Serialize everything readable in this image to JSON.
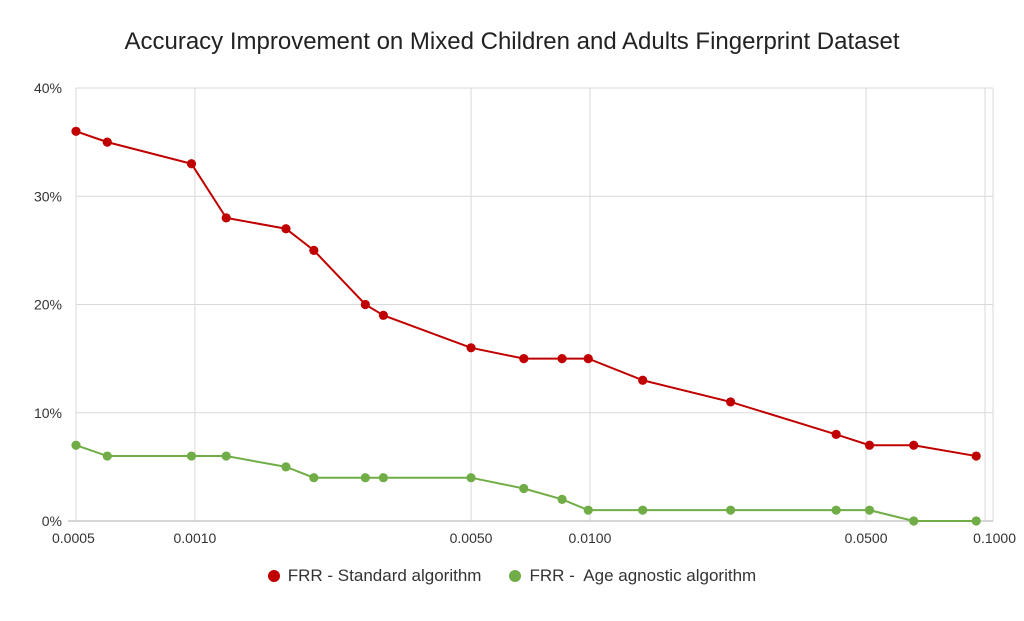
{
  "chart_data": {
    "type": "line",
    "title": "Accuracy Improvement on Mixed Children and Adults Fingerprint Dataset",
    "xscale": "log",
    "xlim": [
      0.0005,
      0.1
    ],
    "ylim": [
      0,
      40
    ],
    "grid": true,
    "legend_position": "bottom",
    "x_ticks": [
      0.0005,
      0.001,
      0.005,
      0.01,
      0.05,
      0.1
    ],
    "x_tick_labels": [
      "0.0005",
      "0.0010",
      "0.0050",
      "0.0100",
      "0.0500",
      "0.1000"
    ],
    "y_ticks": [
      0,
      10,
      20,
      30,
      40
    ],
    "y_tick_labels": [
      "0%",
      "10%",
      "20%",
      "30%",
      "40%"
    ],
    "series": [
      {
        "name": "FRR - Standard algorithm",
        "color": "#c00000",
        "points": [
          [
            0.0005,
            36
          ],
          [
            0.0006,
            35
          ],
          [
            0.00098,
            33
          ],
          [
            0.0012,
            28
          ],
          [
            0.0017,
            27
          ],
          [
            0.002,
            25
          ],
          [
            0.0027,
            20
          ],
          [
            0.003,
            19
          ],
          [
            0.005,
            16
          ],
          [
            0.0068,
            15
          ],
          [
            0.0085,
            15
          ],
          [
            0.0099,
            15
          ],
          [
            0.0136,
            13
          ],
          [
            0.0227,
            11
          ],
          [
            0.042,
            8
          ],
          [
            0.051,
            7
          ],
          [
            0.066,
            7
          ],
          [
            0.095,
            6
          ]
        ]
      },
      {
        "name": "FRR -  Age agnostic algorithm",
        "color": "#70ad47",
        "points": [
          [
            0.0005,
            7
          ],
          [
            0.0006,
            6
          ],
          [
            0.00098,
            6
          ],
          [
            0.0012,
            6
          ],
          [
            0.0017,
            5
          ],
          [
            0.002,
            4
          ],
          [
            0.0027,
            4
          ],
          [
            0.003,
            4
          ],
          [
            0.005,
            4
          ],
          [
            0.0068,
            3
          ],
          [
            0.0085,
            2
          ],
          [
            0.0099,
            1
          ],
          [
            0.0136,
            1
          ],
          [
            0.0227,
            1
          ],
          [
            0.042,
            1
          ],
          [
            0.051,
            1
          ],
          [
            0.066,
            0
          ],
          [
            0.095,
            0
          ]
        ]
      }
    ]
  }
}
